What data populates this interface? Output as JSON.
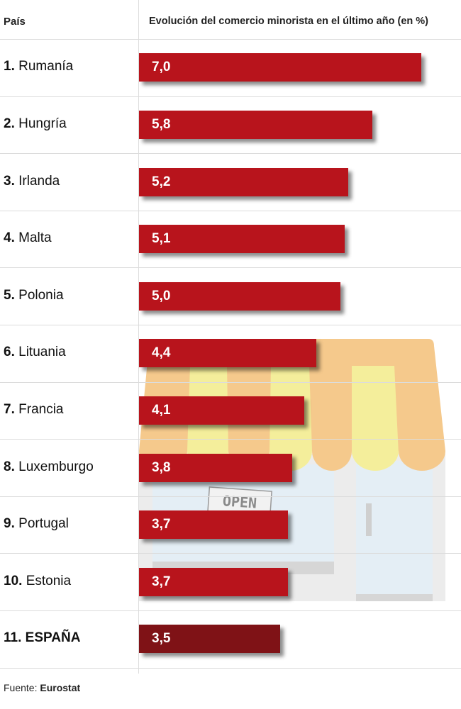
{
  "chart_data": {
    "type": "bar",
    "orientation": "horizontal",
    "column_headers": {
      "country": "País",
      "value": "Evolución del comercio minorista en el último año (en %)"
    },
    "categories": [
      {
        "rank": "1.",
        "name": "Rumanía"
      },
      {
        "rank": "2.",
        "name": "Hungría"
      },
      {
        "rank": "3.",
        "name": "Irlanda"
      },
      {
        "rank": "4.",
        "name": "Malta"
      },
      {
        "rank": "5.",
        "name": "Polonia"
      },
      {
        "rank": "6.",
        "name": "Lituania"
      },
      {
        "rank": "7.",
        "name": "Francia"
      },
      {
        "rank": "8.",
        "name": "Luxemburgo"
      },
      {
        "rank": "9.",
        "name": "Portugal"
      },
      {
        "rank": "10.",
        "name": "Estonia"
      },
      {
        "rank": "11.",
        "name": "ESPAÑA"
      }
    ],
    "values": [
      7.0,
      5.8,
      5.2,
      5.1,
      5.0,
      4.4,
      4.1,
      3.8,
      3.7,
      3.7,
      3.5
    ],
    "value_labels": [
      "7,0",
      "5,8",
      "5,2",
      "5,1",
      "5,0",
      "4,4",
      "4,1",
      "3,8",
      "3,7",
      "3,7",
      "3,5"
    ],
    "highlight_index": 10,
    "xlim": [
      0,
      7.5
    ],
    "grid": "horizontal-row-separators",
    "colors": {
      "bar": "#b8141c",
      "highlight_bar": "#7f1216"
    }
  },
  "illustration": {
    "icon": "shop-storefront-icon",
    "sign_text": "OPEN"
  },
  "source": {
    "label": "Fuente:",
    "name": "Eurostat"
  }
}
